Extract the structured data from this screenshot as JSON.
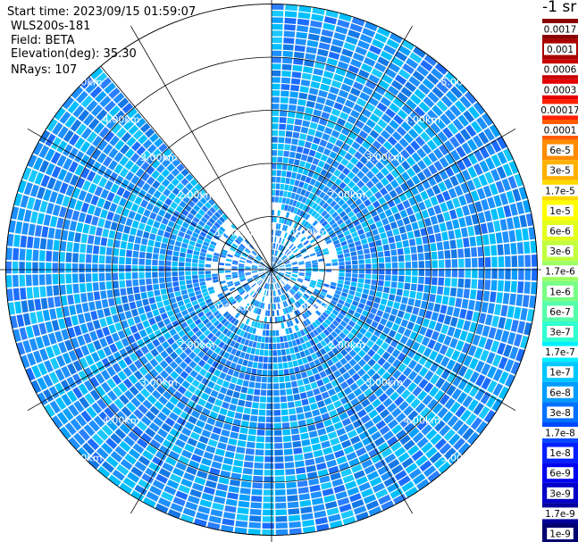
{
  "header": {
    "start_time": "Start time: 2023/09/15 01:59:07",
    "device": "WLS200s-181",
    "field": "Field: BETA",
    "elevation": "Elevation(deg): 35.30",
    "nrays": "NRays: 107"
  },
  "colorbar": {
    "unit": "-1 sr",
    "labels": [
      "0.0017",
      "0.001",
      "0.0006",
      "0.0003",
      "0.00017",
      "0.0001",
      "6e-5",
      "3e-5",
      "1.7e-5",
      "1e-5",
      "6e-6",
      "3e-6",
      "1.7e-6",
      "1e-6",
      "6e-7",
      "3e-7",
      "1.7e-7",
      "1e-7",
      "6e-8",
      "3e-8",
      "1.7e-8",
      "1e-8",
      "6e-9",
      "3e-9",
      "1.7e-9",
      "1e-9"
    ],
    "colors": [
      "#8b0000",
      "#a80000",
      "#c80000",
      "#e60000",
      "#ff2000",
      "#ff5a00",
      "#ff8c00",
      "#ffb000",
      "#ffd800",
      "#ffff00",
      "#e2ff1e",
      "#c0ff3e",
      "#9cff62",
      "#78ff86",
      "#55ffaa",
      "#30ffd0",
      "#00f0ff",
      "#00c8ff",
      "#009cff",
      "#0070ff",
      "#0048ff",
      "#0020ff",
      "#0000f0",
      "#0000c8",
      "#00009c",
      "#000070"
    ]
  },
  "chart_data": {
    "type": "heatmap",
    "projection": "polar (PPI scan)",
    "range_ring_labels": [
      "1.00km",
      "2.00km",
      "3.00km",
      "4.00km",
      "5.00km"
    ],
    "range_rings_km": [
      1,
      2,
      3,
      4,
      5
    ],
    "max_range_km": 5.0,
    "n_rays": 107,
    "elevation_deg": 35.3,
    "azimuth_gap_deg": [
      320,
      360
    ],
    "field": "BETA",
    "value_range": [
      1e-09,
      0.0017
    ],
    "dominant_values": "mostly 1e-8 to 1e-7 (blue / cyan)"
  }
}
